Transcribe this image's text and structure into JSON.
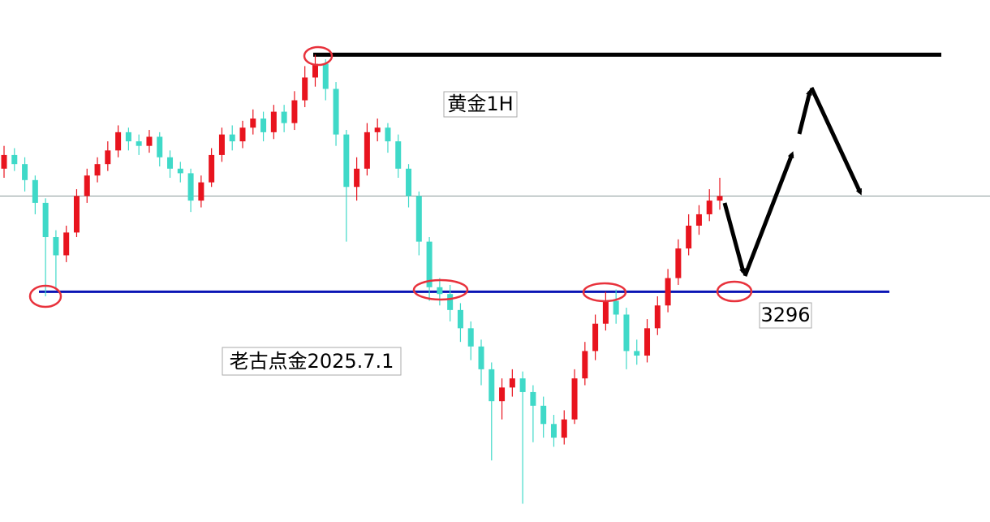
{
  "chart_data": {
    "type": "candlestick",
    "title": "黄金1H",
    "annotations": [
      "老古点金2025.7.1"
    ],
    "up_color": "#e8141e",
    "down_color": "#3fd9c8",
    "open": [
      3350,
      3356,
      3352,
      3345,
      3335,
      3320,
      3312,
      3322,
      3338,
      3347,
      3352,
      3358,
      3366,
      3362,
      3360,
      3364,
      3355,
      3350,
      3348,
      3336,
      3344,
      3356,
      3365,
      3362,
      3368,
      3372,
      3366,
      3375,
      3370,
      3380,
      3390,
      3396,
      3385,
      3365,
      3342,
      3350,
      3366,
      3368,
      3362,
      3350,
      3338,
      3318,
      3298,
      3295,
      3288,
      3280,
      3272,
      3262,
      3248,
      3254,
      3258,
      3252,
      3246,
      3238,
      3232,
      3240,
      3258,
      3270,
      3282,
      3292,
      3286,
      3270,
      3268,
      3280,
      3290,
      3302,
      3315,
      3325,
      3330,
      3336
    ],
    "high": [
      3360,
      3359,
      3355,
      3347,
      3337,
      3323,
      3325,
      3341,
      3350,
      3355,
      3362,
      3369,
      3368,
      3365,
      3367,
      3366,
      3358,
      3353,
      3350,
      3347,
      3359,
      3368,
      3369,
      3371,
      3376,
      3375,
      3378,
      3378,
      3384,
      3395,
      3400,
      3398,
      3388,
      3367,
      3355,
      3370,
      3372,
      3370,
      3365,
      3352,
      3340,
      3320,
      3302,
      3299,
      3291,
      3283,
      3275,
      3265,
      3258,
      3262,
      3261,
      3255,
      3250,
      3242,
      3244,
      3262,
      3274,
      3286,
      3296,
      3297,
      3289,
      3275,
      3284,
      3294,
      3306,
      3319,
      3330,
      3334,
      3341,
      3346
    ],
    "low": [
      3346,
      3349,
      3340,
      3330,
      3294,
      3297,
      3309,
      3320,
      3335,
      3344,
      3349,
      3355,
      3358,
      3356,
      3357,
      3351,
      3346,
      3344,
      3331,
      3333,
      3342,
      3353,
      3358,
      3359,
      3365,
      3362,
      3363,
      3366,
      3367,
      3377,
      3386,
      3380,
      3360,
      3318,
      3336,
      3347,
      3362,
      3357,
      3346,
      3333,
      3312,
      3292,
      3290,
      3283,
      3274,
      3266,
      3255,
      3222,
      3240,
      3250,
      3203,
      3230,
      3232,
      3228,
      3229,
      3238,
      3255,
      3266,
      3279,
      3282,
      3262,
      3264,
      3265,
      3277,
      3287,
      3299,
      3312,
      3321,
      3327,
      3332
    ],
    "close": [
      3356,
      3352,
      3345,
      3335,
      3320,
      3312,
      3322,
      3338,
      3347,
      3352,
      3358,
      3366,
      3362,
      3360,
      3364,
      3355,
      3350,
      3348,
      3336,
      3344,
      3356,
      3365,
      3362,
      3368,
      3372,
      3366,
      3375,
      3370,
      3380,
      3390,
      3396,
      3385,
      3365,
      3342,
      3350,
      3366,
      3368,
      3362,
      3350,
      3338,
      3318,
      3298,
      3295,
      3288,
      3280,
      3272,
      3262,
      3248,
      3254,
      3258,
      3252,
      3246,
      3238,
      3232,
      3240,
      3258,
      3270,
      3282,
      3292,
      3286,
      3270,
      3268,
      3280,
      3290,
      3302,
      3315,
      3325,
      3330,
      3336,
      3338
    ],
    "levels": [
      3400,
      3296
    ],
    "level_colors": [
      "#000000",
      "#0a14b4"
    ],
    "ylim": [
      3195,
      3424
    ]
  }
}
